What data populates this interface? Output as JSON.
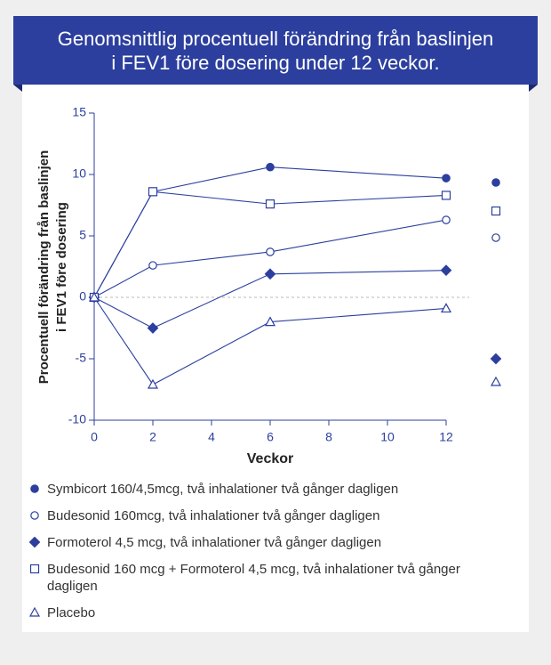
{
  "chart_data": {
    "type": "line",
    "title": "Genomsnittlig procentuell förändring från baslinjen i FEV1 före dosering under 12 veckor.",
    "xlabel": "Veckor",
    "ylabel": [
      "Procentuell förändring från baslinjen",
      "i FEV1 före dosering"
    ],
    "x": [
      0,
      2,
      6,
      12
    ],
    "xlim": [
      0,
      12
    ],
    "xticks": [
      0,
      2,
      4,
      6,
      8,
      10,
      12
    ],
    "ylim": [
      -10,
      15
    ],
    "yticks": [
      -10,
      -5,
      0,
      5,
      10,
      15
    ],
    "color": "#2c3f9e",
    "series": [
      {
        "name": "Symbicort 160/4,5mcg, två inhalationer två gånger dagligen",
        "marker": "circle-filled",
        "values": [
          0,
          8.6,
          10.6,
          9.7
        ]
      },
      {
        "name": "Budesonid 160mcg, två inhalationer två gånger dagligen",
        "marker": "circle-open",
        "values": [
          0,
          2.6,
          3.7,
          6.3
        ]
      },
      {
        "name": "Formoterol 4,5 mcg, två inhalationer två gånger dagligen",
        "marker": "diamond-filled",
        "values": [
          0,
          -2.5,
          1.9,
          2.2
        ]
      },
      {
        "name": "Budesonid 160 mcg + Formoterol 4,5 mcg, två inhalationer två gånger dagligen",
        "marker": "square-open",
        "values": [
          0,
          8.6,
          7.6,
          8.3
        ]
      },
      {
        "name": "Placebo",
        "marker": "triangle-open",
        "values": [
          0,
          -7.1,
          -2.0,
          -0.9
        ]
      }
    ]
  }
}
